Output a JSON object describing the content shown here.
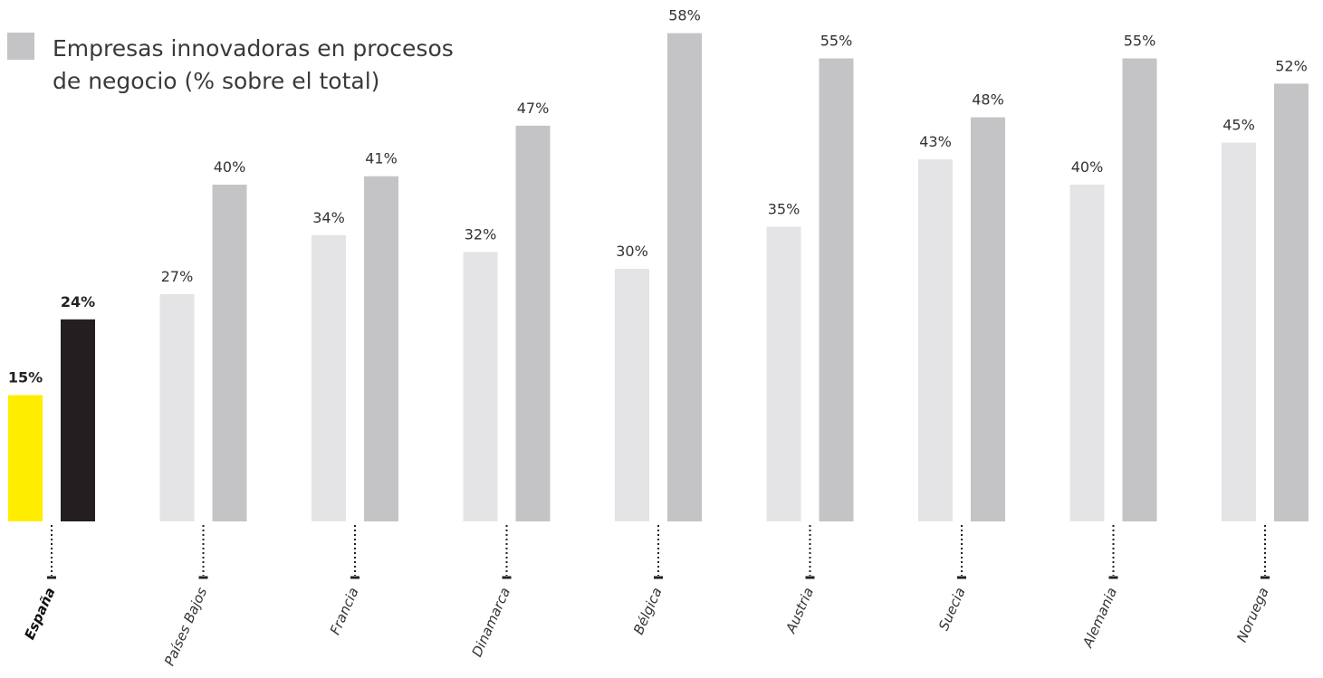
{
  "chart_data": {
    "type": "bar",
    "legend": [
      {
        "label": "Empresas innovadoras en procesos de negocio (% sobre el total)",
        "color": "#c4c4c6"
      }
    ],
    "categories": [
      "España",
      "Países Bajos",
      "Francia",
      "Dinamarca",
      "Bélgica",
      "Austria",
      "Suecia",
      "Alemania",
      "Noruega"
    ],
    "series": [
      {
        "values": [
          15,
          27,
          34,
          32,
          30,
          35,
          43,
          40,
          45
        ],
        "labels": [
          "15%",
          "27%",
          "34%",
          "32%",
          "30%",
          "35%",
          "43%",
          "40%",
          "45%"
        ]
      },
      {
        "values": [
          24,
          40,
          41,
          47,
          58,
          55,
          48,
          55,
          52
        ],
        "labels": [
          "24%",
          "40%",
          "41%",
          "47%",
          "58%",
          "55%",
          "48%",
          "55%",
          "52%"
        ]
      }
    ],
    "highlight_category": "España",
    "colors": {
      "highlight_first": "#ffed00",
      "highlight_second": "#231f20",
      "first": "#e4e4e6",
      "second": "#c4c4c6",
      "axis_marker": "#222222"
    },
    "ylim": [
      0,
      60
    ]
  }
}
